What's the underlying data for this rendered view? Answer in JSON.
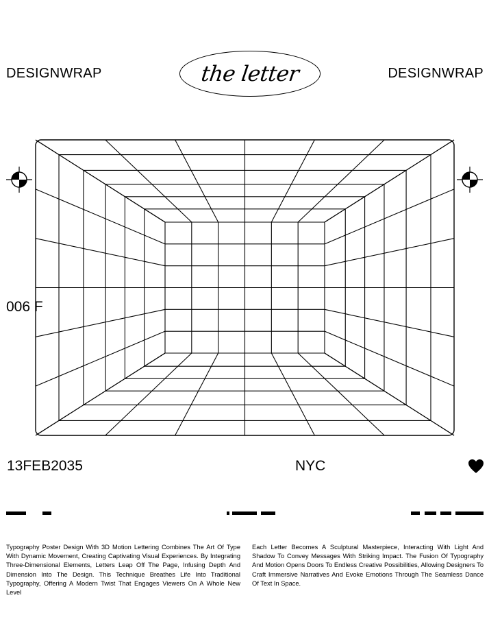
{
  "header": {
    "brand_left": "DESIGNWRAP",
    "brand_right": "DESIGNWRAP",
    "title": "the letter"
  },
  "artwork": {
    "side_label": "006 F",
    "description_icons": [
      "registration-mark-icon",
      "registration-mark-icon"
    ]
  },
  "info_row": {
    "date": "13FEB2035",
    "city": "NYC",
    "icon": "heart-icon"
  },
  "body": {
    "paragraph_left": "Typography Poster Design With 3D Motion Lettering Combines The Art Of Type With Dynamic Movement, Creating Captivating Visual Experiences. By Integrating Three-Dimensional Elements, Letters Leap Off The Page, Infusing Depth And Dimension Into The Design. This Technique Breathes Life Into Traditional Typography, Offering A Modern Twist That Engages Viewers On A Whole New Level",
    "paragraph_right": "Each Letter Becomes A Sculptural Masterpiece, Interacting With Light And Shadow To Convey Messages With Striking Impact. The Fusion Of Typography And Motion Opens Doors To Endless Creative Possibilities, Allowing Designers To Craft Immersive Narratives And Evoke Emotions Through The Seamless Dance Of Text In Space."
  },
  "colors": {
    "ink": "#000000",
    "paper": "#ffffff"
  }
}
